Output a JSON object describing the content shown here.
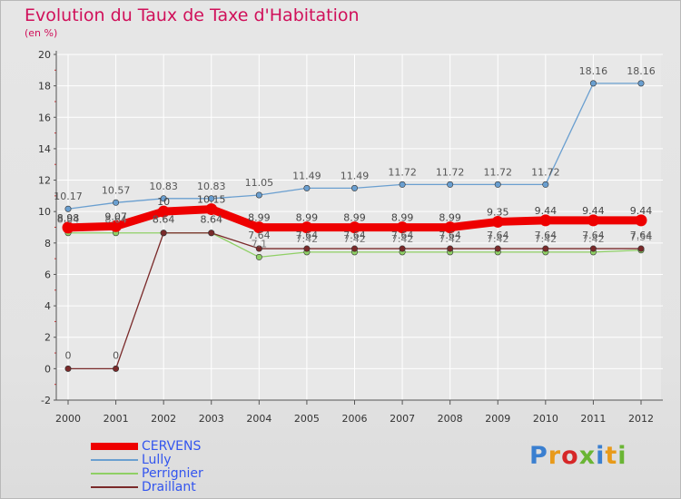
{
  "title": "Evolution du Taux de Taxe d'Habitation",
  "unit_label": "(en %)",
  "logo": {
    "text": "Proxiti",
    "colors": [
      "#3a7fd0",
      "#e89a1a",
      "#d62728",
      "#6ab534",
      "#3a7fd0",
      "#e89a1a",
      "#6ab534"
    ]
  },
  "chart_data": {
    "type": "line",
    "title": "Evolution du Taux de Taxe d'Habitation",
    "ylabel": "(en %)",
    "xlabel": "",
    "x": [
      2000,
      2001,
      2002,
      2003,
      2004,
      2005,
      2006,
      2007,
      2008,
      2009,
      2010,
      2011,
      2012
    ],
    "ylim": [
      -2,
      20
    ],
    "yticks": [
      -2,
      0,
      2,
      4,
      6,
      8,
      10,
      12,
      14,
      16,
      18,
      20
    ],
    "grid": true,
    "legend_position": "bottom-left",
    "series": [
      {
        "name": "CERVENS",
        "color": "#ee0000",
        "values": [
          8.98,
          9.07,
          10,
          10.15,
          8.99,
          8.99,
          8.99,
          8.99,
          8.99,
          9.35,
          9.44,
          9.44,
          9.44
        ],
        "labels": [
          "8.98",
          "9.07",
          "10",
          "10.15",
          "8.99",
          "8.99",
          "8.99",
          "8.99",
          "8.99",
          "9.35",
          "9.44",
          "9.44",
          "9.44"
        ]
      },
      {
        "name": "Lully",
        "color": "#6a9fd0",
        "values": [
          10.17,
          10.57,
          10.83,
          10.83,
          11.05,
          11.49,
          11.49,
          11.72,
          11.72,
          11.72,
          11.72,
          18.16,
          18.16
        ],
        "labels": [
          "10.17",
          "10.57",
          "10.83",
          "10.83",
          "11.05",
          "11.49",
          "11.49",
          "11.72",
          "11.72",
          "11.72",
          "11.72",
          "18.16",
          "18.16"
        ]
      },
      {
        "name": "Perrignier",
        "color": "#8fd065",
        "values": [
          8.64,
          8.64,
          8.64,
          8.64,
          7.1,
          7.42,
          7.42,
          7.42,
          7.42,
          7.42,
          7.42,
          7.42,
          7.54
        ],
        "labels": [
          "8.64",
          "8.64",
          "8.64",
          "8.64",
          "7.1",
          "7.42",
          "7.42",
          "7.42",
          "7.42",
          "7.42",
          "7.42",
          "7.42",
          "7.54"
        ]
      },
      {
        "name": "Draillant",
        "color": "#7a2a2a",
        "values": [
          0,
          0,
          8.64,
          8.64,
          7.64,
          7.64,
          7.64,
          7.64,
          7.64,
          7.64,
          7.64,
          7.64,
          7.64
        ],
        "labels": [
          "0",
          "0",
          "8.64",
          "8.64",
          "7.64",
          "7.64",
          "7.64",
          "7.64",
          "7.64",
          "7.64",
          "7.64",
          "7.64",
          "7.64"
        ]
      }
    ]
  }
}
